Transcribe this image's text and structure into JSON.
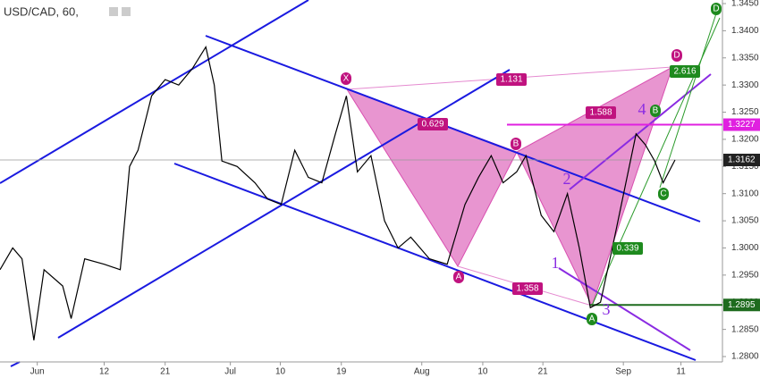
{
  "chart_data": {
    "type": "line",
    "title": "USD/CAD, 60,",
    "color": "#000000",
    "x": [
      -4.4,
      -2.9,
      -1.8,
      -0.4,
      0.8,
      3.0,
      4.0,
      5.6,
      7.9,
      9.8,
      10.9,
      11.9,
      13.5,
      15.1,
      16.7,
      18.3,
      19.9,
      20.9,
      21.8,
      23.6,
      25.7,
      27.2,
      28.8,
      30.4,
      32.0,
      33.6,
      35.2,
      36.5,
      37.8,
      39.4,
      41.0,
      42.6,
      44.1,
      46.3,
      48.4,
      50.5,
      52.1,
      53.6,
      55.0,
      56.6,
      57.7,
      59.5,
      61.0,
      62.6,
      64.0,
      65.3,
      66.5,
      67.9,
      69.5,
      70.7,
      71.8,
      72.9,
      73.9,
      75.3
    ],
    "values": [
      1.296,
      1.3,
      1.298,
      1.283,
      1.296,
      1.293,
      1.287,
      1.298,
      1.297,
      1.296,
      1.315,
      1.318,
      1.328,
      1.331,
      1.33,
      1.333,
      1.337,
      1.33,
      1.316,
      1.315,
      1.312,
      1.309,
      1.308,
      1.318,
      1.313,
      1.312,
      1.321,
      1.328,
      1.314,
      1.317,
      1.305,
      1.3,
      1.302,
      1.298,
      1.297,
      1.308,
      1.313,
      1.317,
      1.312,
      1.314,
      1.317,
      1.306,
      1.303,
      1.31,
      1.3,
      1.289,
      1.29,
      1.3,
      1.312,
      1.321,
      1.319,
      1.316,
      1.312,
      1.3162
    ],
    "xlim": [
      -4.4,
      80.9
    ],
    "xticks": [
      {
        "value": 0,
        "label": "Jun"
      },
      {
        "value": 7.9,
        "label": "12"
      },
      {
        "value": 15.1,
        "label": "21"
      },
      {
        "value": 22.8,
        "label": "Jul"
      },
      {
        "value": 28.7,
        "label": "10"
      },
      {
        "value": 35.9,
        "label": "19"
      },
      {
        "value": 45.4,
        "label": "Aug"
      },
      {
        "value": 52.6,
        "label": "10"
      },
      {
        "value": 59.7,
        "label": "21"
      },
      {
        "value": 69.2,
        "label": "Sep"
      },
      {
        "value": 76.0,
        "label": "11"
      }
    ],
    "ylim": [
      1.28,
      1.345
    ],
    "yticks": [
      {
        "value": 1.28,
        "label": "1.2800"
      },
      {
        "value": 1.285,
        "label": "1.2850"
      },
      {
        "value": 1.29,
        "label": "1.2900"
      },
      {
        "value": 1.295,
        "label": "1.2950"
      },
      {
        "value": 1.3,
        "label": "1.3000"
      },
      {
        "value": 1.305,
        "label": "1.3050"
      },
      {
        "value": 1.31,
        "label": "1.3100"
      },
      {
        "value": 1.315,
        "label": "1.3150"
      },
      {
        "value": 1.32,
        "label": "1.3200"
      },
      {
        "value": 1.325,
        "label": "1.3250"
      },
      {
        "value": 1.33,
        "label": "1.3300"
      },
      {
        "value": 1.335,
        "label": "1.3350"
      },
      {
        "value": 1.34,
        "label": "1.3400"
      },
      {
        "value": 1.345,
        "label": "1.3450"
      }
    ],
    "price_tags": [
      {
        "value": 1.3227,
        "color": "#e020e0"
      },
      {
        "value": 1.3162,
        "color": "#222222"
      },
      {
        "value": 1.2895,
        "color": "#1e6b1e"
      }
    ],
    "pattern_labels": [
      "X",
      "A",
      "B",
      "D",
      "B",
      "A",
      "C",
      "D"
    ],
    "wave_labels": [
      "1",
      "2",
      "3",
      "4"
    ],
    "ratios": [
      1.131,
      0.629,
      1.588,
      2.616,
      0.339,
      1.358
    ]
  }
}
